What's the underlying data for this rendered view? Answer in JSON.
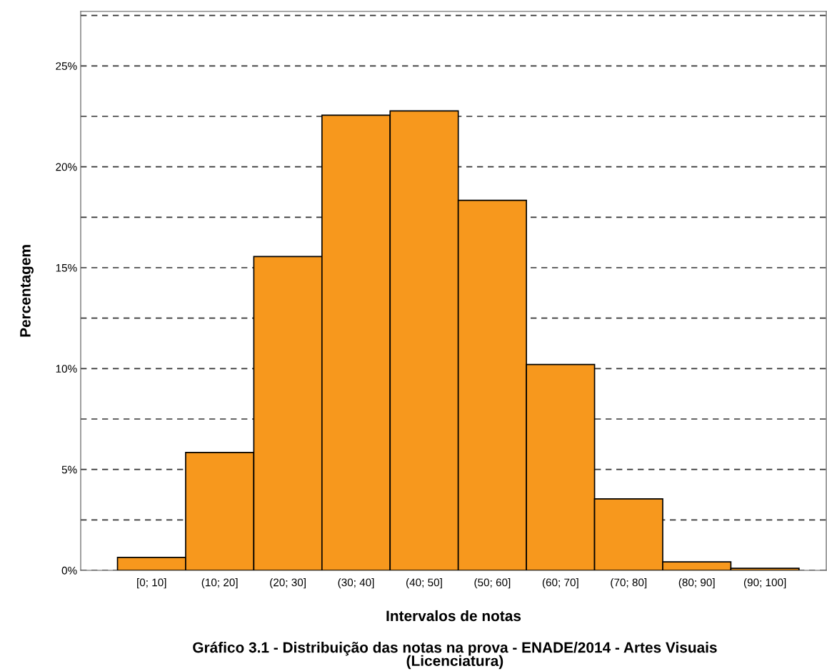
{
  "chart_data": {
    "type": "bar",
    "title": "Gráfico 3.1 - Distribuição das notas na prova - ENADE/2014 - Artes Visuais\n(Licenciatura)",
    "xlabel": "Intervalos de notas",
    "ylabel": "Percentagem",
    "categories": [
      "[0; 10]",
      "(10; 20]",
      "(20; 30]",
      "(30; 40]",
      "(40; 50]",
      "(50; 60]",
      "(60; 70]",
      "(70; 80]",
      "(80; 90]",
      "(90; 100]"
    ],
    "values": [
      0.64,
      5.84,
      15.55,
      22.56,
      22.77,
      18.34,
      10.2,
      3.54,
      0.42,
      0.1
    ],
    "color": "#f7981d",
    "ylim": [
      0,
      27.7
    ],
    "yticks": [
      {
        "value": 0,
        "label": "0%"
      },
      {
        "value": 2.5,
        "label": null
      },
      {
        "value": 5,
        "label": "5%"
      },
      {
        "value": 7.5,
        "label": null
      },
      {
        "value": 10,
        "label": "10%"
      },
      {
        "value": 12.5,
        "label": null
      },
      {
        "value": 15,
        "label": "15%"
      },
      {
        "value": 17.5,
        "label": null
      },
      {
        "value": 20,
        "label": "20%"
      },
      {
        "value": 22.5,
        "label": null
      },
      {
        "value": 25,
        "label": "25%"
      },
      {
        "value": 27.5,
        "label": null
      }
    ],
    "grid": "y",
    "line_style": "dashed"
  }
}
